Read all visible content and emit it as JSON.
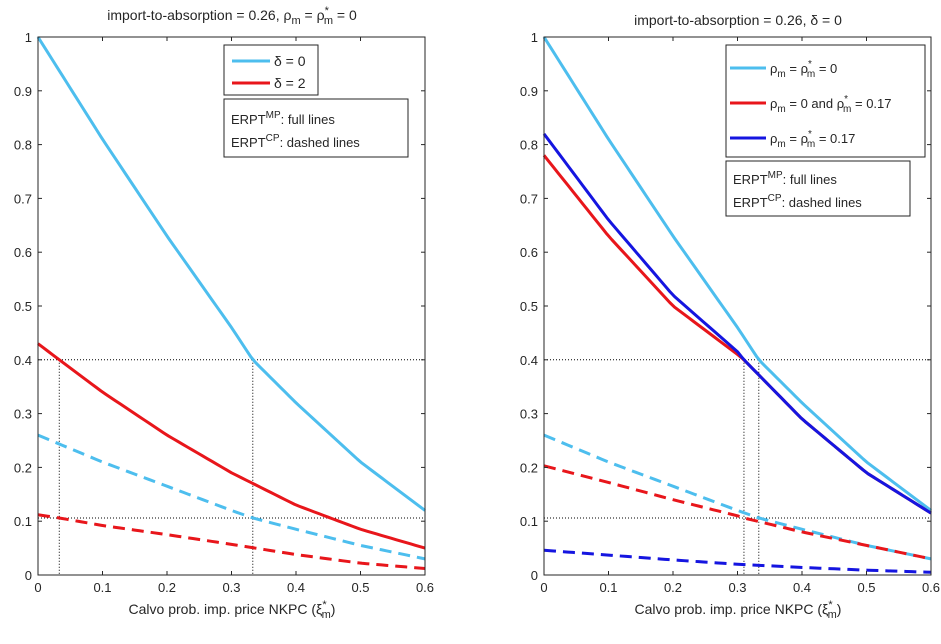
{
  "colors": {
    "cyan": "#4DBEEE",
    "red": "#E8161B",
    "blue": "#1515E0",
    "axis": "#262626",
    "ref": "#000000"
  },
  "chart_data": [
    {
      "type": "line",
      "title": "import-to-absorption = 0.26, ρm = ρ*m = 0",
      "title_parts": {
        "prefix": "import-to-absorption = 0.26, ",
        "rho": "ρ",
        "sub_m": "m",
        "eq": " = ",
        "star": "*",
        "suffix": " = 0"
      },
      "xlabel": {
        "text": "Calvo prob. imp. price NKPC (",
        "sym": "ξ",
        "sup": "*",
        "sub": "m",
        "close": ")"
      },
      "ylabel": "",
      "xlim": [
        0,
        0.6
      ],
      "ylim": [
        0,
        1
      ],
      "xticks": [
        "0",
        "0.1",
        "0.2",
        "0.3",
        "0.4",
        "0.5",
        "0.6"
      ],
      "yticks": [
        "0",
        "0.1",
        "0.2",
        "0.3",
        "0.4",
        "0.5",
        "0.6",
        "0.7",
        "0.8",
        "0.9",
        "1"
      ],
      "grid": false,
      "legend_position": "top-right",
      "legend": [
        {
          "label": "δ = 0",
          "color": "#4DBEEE"
        },
        {
          "label": "δ = 2",
          "color": "#E8161B"
        }
      ],
      "note": {
        "line1_main": "ERPT",
        "line1_sup": "MP",
        "line1_rest": ": full lines",
        "line2_main": "ERPT",
        "line2_sup": "CP",
        "line2_rest": ": dashed lines"
      },
      "series": [
        {
          "name": "δ = 0",
          "style": "solid",
          "color": "#4DBEEE",
          "x": [
            0,
            0.1,
            0.2,
            0.3,
            0.333,
            0.4,
            0.5,
            0.6
          ],
          "y": [
            1.0,
            0.81,
            0.63,
            0.46,
            0.4,
            0.32,
            0.21,
            0.12
          ]
        },
        {
          "name": "δ = 2",
          "style": "solid",
          "color": "#E8161B",
          "x": [
            0,
            0.033,
            0.1,
            0.2,
            0.3,
            0.4,
            0.5,
            0.6
          ],
          "y": [
            0.43,
            0.4,
            0.34,
            0.26,
            0.19,
            0.13,
            0.085,
            0.05
          ]
        },
        {
          "name": "",
          "style": "dashed",
          "color": "#4DBEEE",
          "x": [
            0,
            0.1,
            0.2,
            0.3,
            0.333,
            0.4,
            0.5,
            0.6
          ],
          "y": [
            0.26,
            0.21,
            0.165,
            0.12,
            0.106,
            0.085,
            0.055,
            0.03
          ]
        },
        {
          "name": "",
          "style": "dashed",
          "color": "#E8161B",
          "x": [
            0,
            0.033,
            0.1,
            0.2,
            0.3,
            0.4,
            0.5,
            0.6
          ],
          "y": [
            0.112,
            0.106,
            0.092,
            0.075,
            0.057,
            0.038,
            0.022,
            0.012
          ]
        }
      ],
      "ref_h": [
        0.4,
        0.106
      ],
      "ref_v": [
        0.033,
        0.333
      ]
    },
    {
      "type": "line",
      "title": "import-to-absorption = 0.26, δ = 0",
      "title_text": "import-to-absorption = 0.26, δ = 0",
      "xlabel": {
        "text": "Calvo prob. imp. price NKPC (",
        "sym": "ξ",
        "sup": "*",
        "sub": "m",
        "close": ")"
      },
      "ylabel": "",
      "xlim": [
        0,
        0.6
      ],
      "ylim": [
        0,
        1
      ],
      "xticks": [
        "0",
        "0.1",
        "0.2",
        "0.3",
        "0.4",
        "0.5",
        "0.6"
      ],
      "yticks": [
        "0",
        "0.1",
        "0.2",
        "0.3",
        "0.4",
        "0.5",
        "0.6",
        "0.7",
        "0.8",
        "0.9",
        "1"
      ],
      "grid": false,
      "legend_position": "top-right",
      "legend": [
        {
          "label": "ρm = ρ*m = 0",
          "rho": "ρ",
          "sub": "m",
          "mid": " = ",
          "star": "*",
          "suffix": " = 0",
          "color": "#4DBEEE"
        },
        {
          "label": "ρm = 0 and ρ*m = 0.17",
          "rho": "ρ",
          "sub": "m",
          "mid": " = 0 and ",
          "star": "*",
          "suffix": " = 0.17",
          "color": "#E8161B"
        },
        {
          "label": "ρm = ρ*m = 0.17",
          "rho": "ρ",
          "sub": "m",
          "mid": " = ",
          "star": "*",
          "suffix": " = 0.17",
          "color": "#1515E0"
        }
      ],
      "note": {
        "line1_main": "ERPT",
        "line1_sup": "MP",
        "line1_rest": ": full lines",
        "line2_main": "ERPT",
        "line2_sup": "CP",
        "line2_rest": ": dashed lines"
      },
      "series": [
        {
          "name": "ρm = ρ*m = 0",
          "style": "solid",
          "color": "#4DBEEE",
          "x": [
            0,
            0.1,
            0.2,
            0.3,
            0.333,
            0.4,
            0.5,
            0.6
          ],
          "y": [
            1.0,
            0.81,
            0.63,
            0.46,
            0.4,
            0.32,
            0.21,
            0.12
          ]
        },
        {
          "name": "ρm = 0 and ρ*m = 0.17",
          "style": "solid",
          "color": "#E8161B",
          "x": [
            0,
            0.1,
            0.2,
            0.3,
            0.31,
            0.4,
            0.5,
            0.6
          ],
          "y": [
            0.78,
            0.63,
            0.5,
            0.41,
            0.4,
            0.29,
            0.19,
            0.115
          ]
        },
        {
          "name": "ρm = ρ*m = 0.17",
          "style": "solid",
          "color": "#1515E0",
          "x": [
            0,
            0.1,
            0.2,
            0.3,
            0.31,
            0.4,
            0.5,
            0.6
          ],
          "y": [
            0.82,
            0.66,
            0.52,
            0.415,
            0.4,
            0.29,
            0.19,
            0.115
          ]
        },
        {
          "name": "",
          "style": "dashed",
          "color": "#4DBEEE",
          "x": [
            0,
            0.1,
            0.2,
            0.3,
            0.333,
            0.4,
            0.5,
            0.6
          ],
          "y": [
            0.26,
            0.21,
            0.165,
            0.12,
            0.106,
            0.085,
            0.055,
            0.03
          ]
        },
        {
          "name": "",
          "style": "dashed",
          "color": "#E8161B",
          "x": [
            0,
            0.1,
            0.2,
            0.3,
            0.31,
            0.4,
            0.5,
            0.6
          ],
          "y": [
            0.203,
            0.172,
            0.14,
            0.11,
            0.106,
            0.08,
            0.055,
            0.03
          ]
        },
        {
          "name": "",
          "style": "dashed",
          "color": "#1515E0",
          "x": [
            0,
            0.1,
            0.2,
            0.3,
            0.4,
            0.5,
            0.6
          ],
          "y": [
            0.046,
            0.037,
            0.028,
            0.02,
            0.014,
            0.009,
            0.005
          ]
        }
      ],
      "ref_h": [
        0.4,
        0.106
      ],
      "ref_v": [
        0.31,
        0.333
      ]
    }
  ]
}
